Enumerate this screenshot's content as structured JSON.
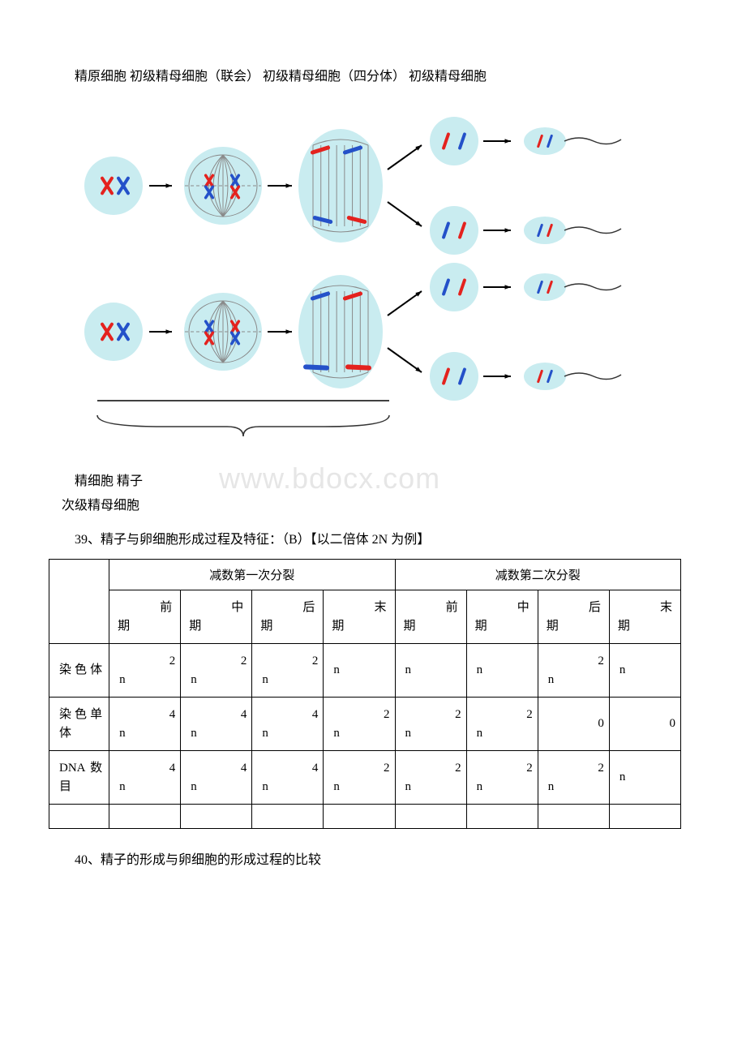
{
  "line1_parts": {
    "a": "精原细胞 初级精母细胞（联会） 初级精母细胞（四分体） 初级精母细胞"
  },
  "diagram": {
    "colors": {
      "cell_bg": "#c9ecf0",
      "chrom_red": "#e4221e",
      "chrom_blue": "#2451c9",
      "spindle": "#8a8a8a",
      "arrow": "#000000",
      "brace": "#333333",
      "underline": "#000000"
    },
    "arrow_w": 28
  },
  "labels_below": {
    "l1": "精细胞 精子",
    "l2": "  次级精母细胞"
  },
  "watermark": "www.bdocx.com",
  "q39": "39、精子与卵细胞形成过程及特征：（B）【以二倍体 2N 为例】",
  "table": {
    "group1": "减数第一次分裂",
    "group2": "减数第二次分裂",
    "phases": [
      "前期",
      "中期",
      "后期",
      "末期",
      "前期",
      "中期",
      "后期",
      "末期"
    ],
    "rows": [
      {
        "head": "染色体",
        "cells": [
          "2n",
          "2n",
          "2n",
          "n",
          "n",
          "n",
          "2n",
          "n"
        ]
      },
      {
        "head": "染色单体",
        "cells": [
          "4n",
          "4n",
          "4n",
          "2n",
          "2n",
          "2n",
          "0",
          "0"
        ]
      },
      {
        "head": "DNA数目",
        "cells": [
          "4n",
          "4n",
          "4n",
          "2n",
          "2n",
          "2n",
          "2n",
          "n"
        ]
      }
    ]
  },
  "q40": "40、精子的形成与卵细胞的形成过程的比较"
}
